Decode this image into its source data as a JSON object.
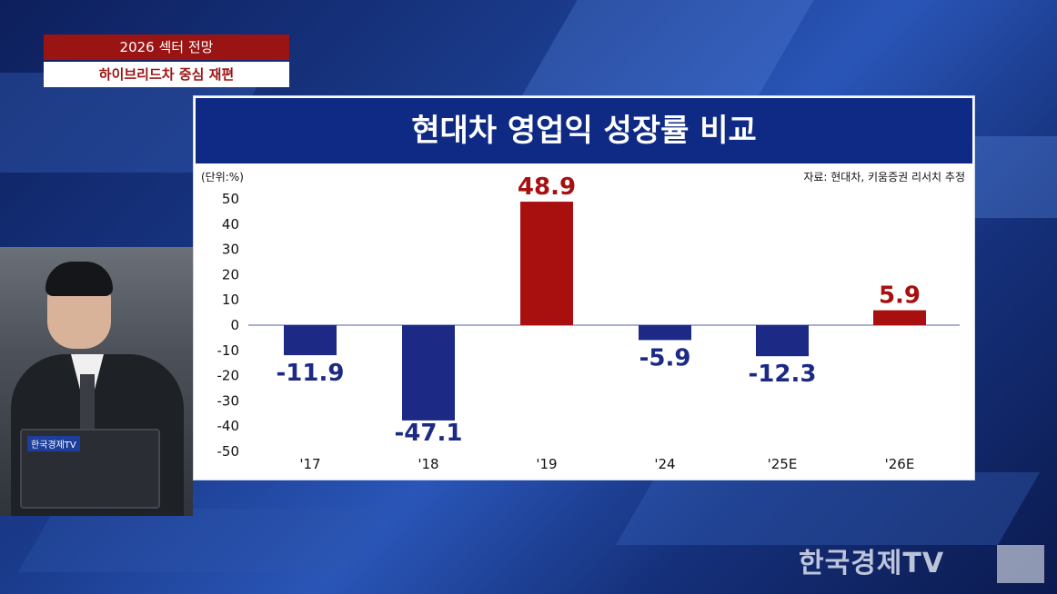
{
  "overlay": {
    "tag_top": "2026 섹터 전망",
    "tag_bottom": "하이브리드차 중심 재편"
  },
  "anchor": {
    "laptop_logo": "한국경제TV"
  },
  "watermark": {
    "text": "한국경제TV"
  },
  "colors": {
    "negative": "#1c2a85",
    "positive": "#a80f0f",
    "title_bg": "#0e2a85",
    "tag_bg": "#9b1414"
  },
  "chart_data": {
    "type": "bar",
    "title": "현대차 영업익 성장률 비교",
    "unit_label": "(단위:%)",
    "source": "자료: 현대차, 키움증권 리서치 추정",
    "categories": [
      "'17",
      "'18",
      "'19",
      "'24",
      "'25E",
      "'26E"
    ],
    "values": [
      -11.9,
      -47.1,
      48.9,
      -5.9,
      -12.3,
      5.9
    ],
    "labels": [
      "-11.9",
      "-47.1",
      "48.9",
      "-5.9",
      "-12.3",
      "5.9"
    ],
    "ylim": [
      -50,
      50
    ],
    "yticks": [
      "50",
      "40",
      "30",
      "20",
      "10",
      "0",
      "-10",
      "-20",
      "-30",
      "-40",
      "-50"
    ],
    "ytick_values": [
      50,
      40,
      30,
      20,
      10,
      0,
      -10,
      -20,
      -30,
      -40,
      -50
    ]
  }
}
